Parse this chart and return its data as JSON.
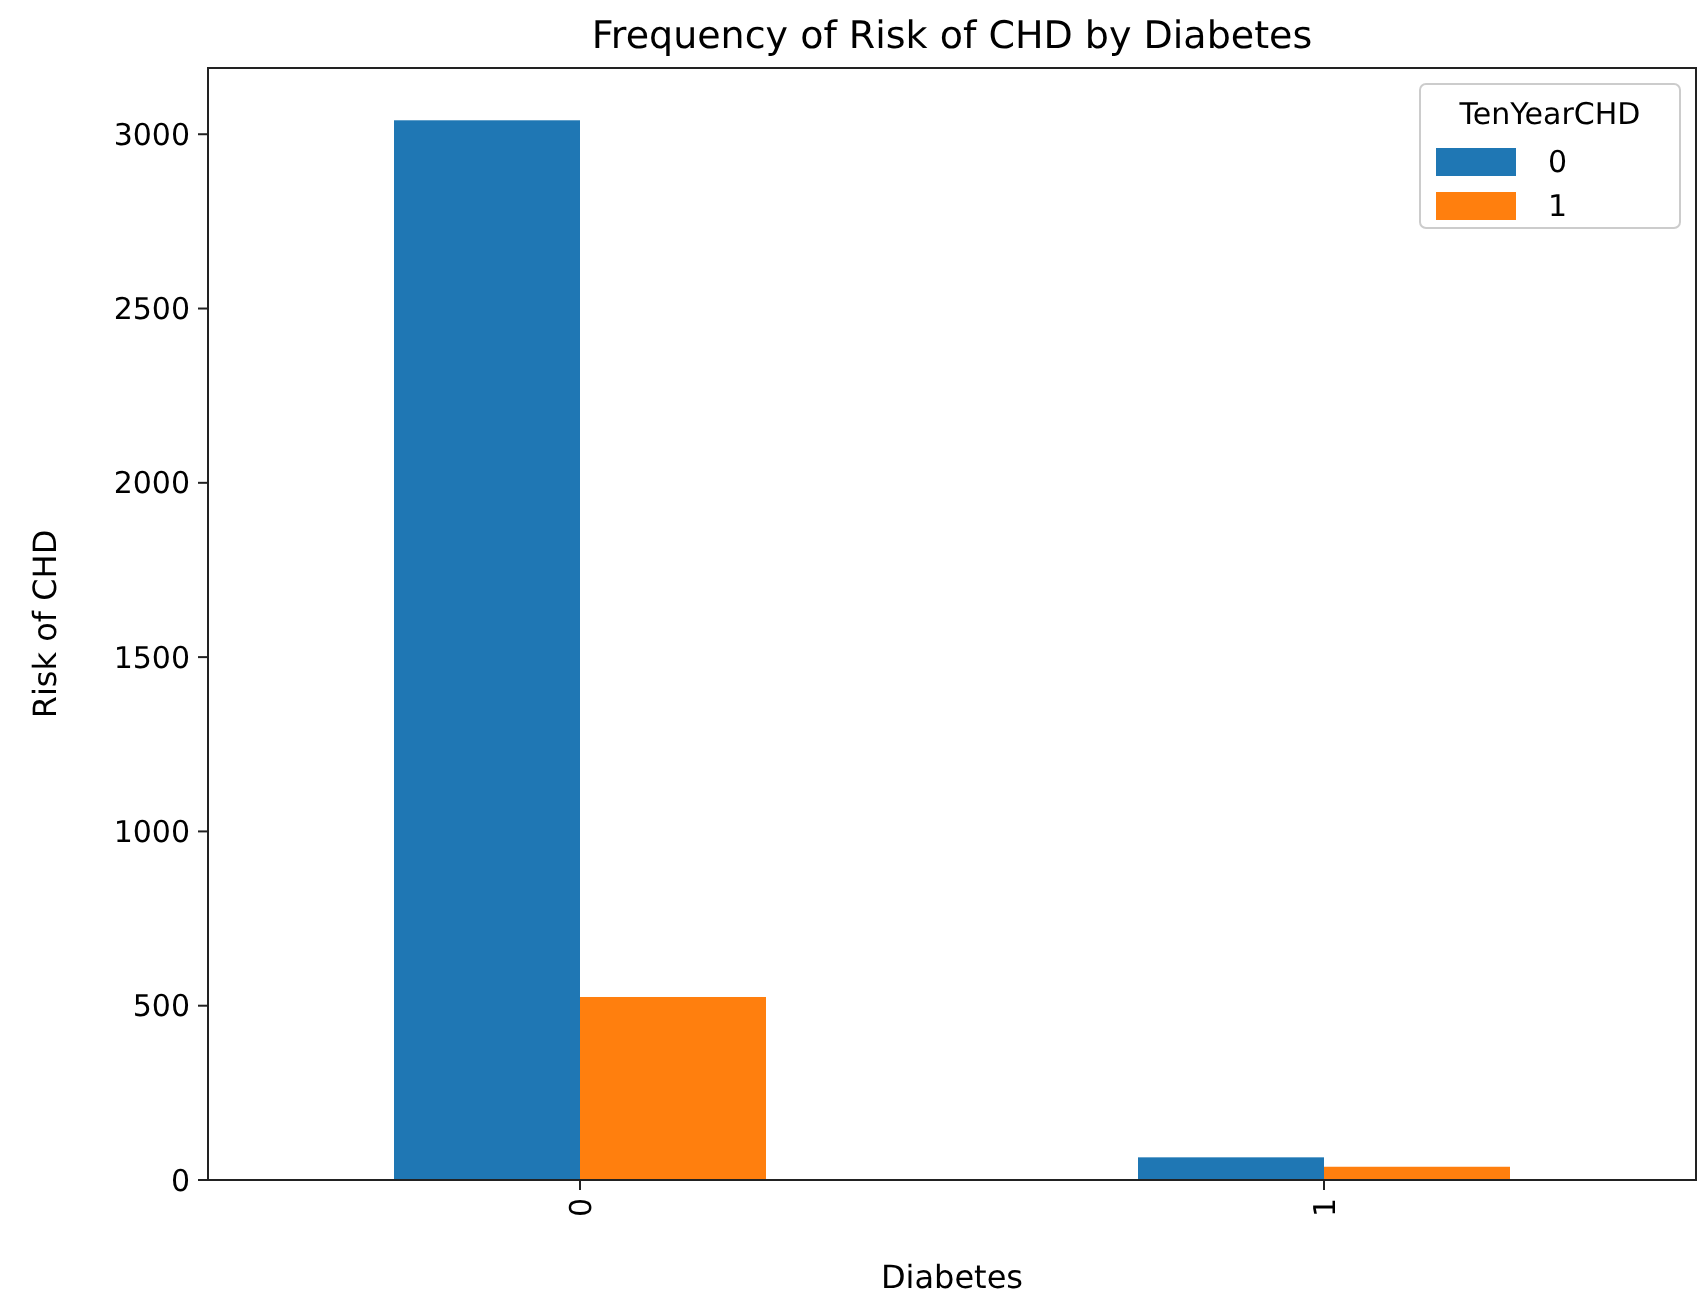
{
  "chart_data": {
    "type": "bar",
    "title": "Frequency of Risk of CHD by Diabetes",
    "xlabel": "Diabetes",
    "ylabel": "Risk of CHD",
    "legend_title": "TenYearCHD",
    "categories": [
      "0",
      "1"
    ],
    "series": [
      {
        "name": "0",
        "color": "#1f77b4",
        "values": [
          3040,
          65
        ]
      },
      {
        "name": "1",
        "color": "#ff7f0e",
        "values": [
          525,
          38
        ]
      }
    ],
    "ylim": [
      0,
      3190
    ],
    "yticks": [
      0,
      500,
      1000,
      1500,
      2000,
      2500,
      3000
    ],
    "legend": "top right"
  }
}
